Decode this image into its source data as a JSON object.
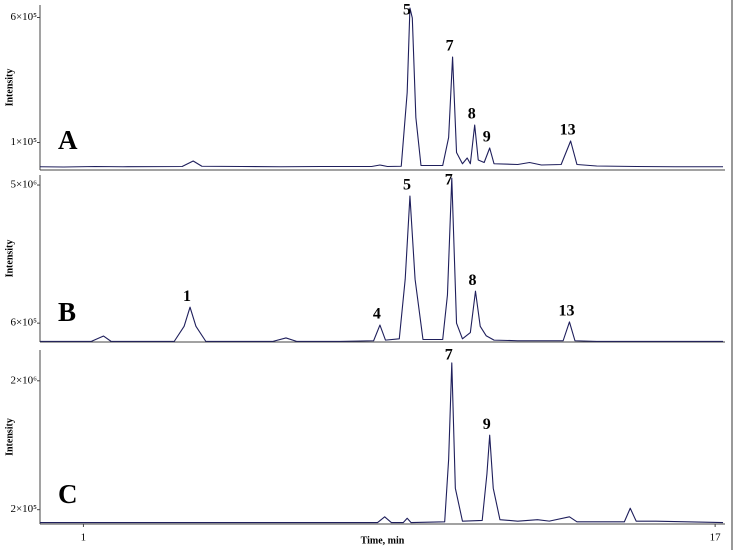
{
  "chart_data": [
    {
      "type": "line",
      "label": "A",
      "ylabel": "Intensity",
      "xlim": [
        -0.1,
        17.25
      ],
      "ylim": [
        -10000,
        650000
      ],
      "yticks": [
        {
          "value": 600000,
          "label": "6×10⁵"
        },
        {
          "value": 100000,
          "label": "1×10⁵"
        }
      ],
      "x": [
        -0.1,
        0.5,
        1.3,
        2,
        3.5,
        3.78,
        4.0,
        5,
        6,
        7,
        8.3,
        8.51,
        8.7,
        9.05,
        9.2,
        9.27,
        9.33,
        9.42,
        9.55,
        10.1,
        10.25,
        10.35,
        10.45,
        10.6,
        10.72,
        10.8,
        10.91,
        11.0,
        11.15,
        11.29,
        11.4,
        12.0,
        12.3,
        12.6,
        13.1,
        13.34,
        13.5,
        14,
        15,
        16,
        17.2
      ],
      "series": [
        {
          "color": "#1f1f5c",
          "values": [
            3000,
            2000,
            4000,
            3000,
            4000,
            26000,
            5000,
            4000,
            3000,
            4000,
            4000,
            10000,
            4000,
            5000,
            300000,
            638000,
            598000,
            200000,
            8000,
            8000,
            120000,
            442000,
            60000,
            15000,
            38000,
            15000,
            170000,
            30000,
            20000,
            78000,
            15000,
            12000,
            20000,
            10000,
            12000,
            106000,
            12000,
            6000,
            4000,
            3000,
            3000
          ]
        }
      ],
      "peaks": [
        {
          "label": "5",
          "x": 9.27
        },
        {
          "label": "7",
          "x": 10.35
        },
        {
          "label": "8",
          "x": 10.91
        },
        {
          "label": "9",
          "x": 11.29
        },
        {
          "label": "13",
          "x": 13.34
        }
      ]
    },
    {
      "type": "line",
      "label": "B",
      "ylabel": "Intensity",
      "xlim": [
        -0.1,
        17.25
      ],
      "ylim": [
        0,
        5320000
      ],
      "yticks": [
        {
          "value": 5000000,
          "label": "5×10⁶"
        },
        {
          "value": 600000,
          "label": "6×10⁵"
        }
      ],
      "x": [
        -0.1,
        1.2,
        1.51,
        1.7,
        3.3,
        3.55,
        3.7,
        3.85,
        4.1,
        5.8,
        6.13,
        6.4,
        7.5,
        8.35,
        8.51,
        8.65,
        9.0,
        9.15,
        9.27,
        9.4,
        9.6,
        10.1,
        10.22,
        10.33,
        10.45,
        10.6,
        10.8,
        10.93,
        11.05,
        11.2,
        11.4,
        12,
        13.15,
        13.31,
        13.45,
        14,
        17.2
      ],
      "series": [
        {
          "color": "#1f1f5c",
          "values": [
            20000,
            20000,
            190000,
            20000,
            20000,
            500000,
            1110000,
            500000,
            20000,
            20000,
            130000,
            20000,
            20000,
            40000,
            540000,
            60000,
            100000,
            2000000,
            4650000,
            2000000,
            80000,
            80000,
            1500000,
            5220000,
            600000,
            100000,
            300000,
            1620000,
            500000,
            200000,
            60000,
            40000,
            40000,
            640000,
            40000,
            20000,
            20000
          ]
        }
      ],
      "peaks": [
        {
          "label": "1",
          "x": 3.7
        },
        {
          "label": "4",
          "x": 8.51
        },
        {
          "label": "5",
          "x": 9.27
        },
        {
          "label": "7",
          "x": 10.33
        },
        {
          "label": "8",
          "x": 10.93
        },
        {
          "label": "13",
          "x": 13.31
        }
      ]
    },
    {
      "type": "line",
      "label": "C",
      "ylabel": "Intensity",
      "xlabel": "Time, min",
      "xlim": [
        -0.1,
        17.25
      ],
      "ylim": [
        0,
        2430000
      ],
      "xticks": [
        1,
        17
      ],
      "yticks": [
        {
          "value": 2000000,
          "label": "2×10⁶"
        },
        {
          "value": 200000,
          "label": "2×10⁵"
        }
      ],
      "x": [
        -0.1,
        7,
        8.45,
        8.63,
        8.8,
        9.1,
        9.2,
        9.3,
        10.15,
        10.25,
        10.33,
        10.42,
        10.6,
        11.1,
        11.22,
        11.29,
        11.38,
        11.55,
        12.0,
        12.5,
        12.8,
        13.31,
        13.5,
        14.7,
        14.85,
        15.0,
        15.5,
        17.2
      ],
      "series": [
        {
          "color": "#1f1f5c",
          "values": [
            20000,
            20000,
            20000,
            100000,
            20000,
            20000,
            80000,
            20000,
            30000,
            900000,
            2250000,
            500000,
            40000,
            50000,
            700000,
            1240000,
            500000,
            60000,
            40000,
            60000,
            40000,
            100000,
            30000,
            30000,
            220000,
            40000,
            40000,
            20000
          ]
        }
      ],
      "peaks": [
        {
          "label": "7",
          "x": 10.33
        },
        {
          "label": "9",
          "x": 11.29
        }
      ]
    }
  ]
}
